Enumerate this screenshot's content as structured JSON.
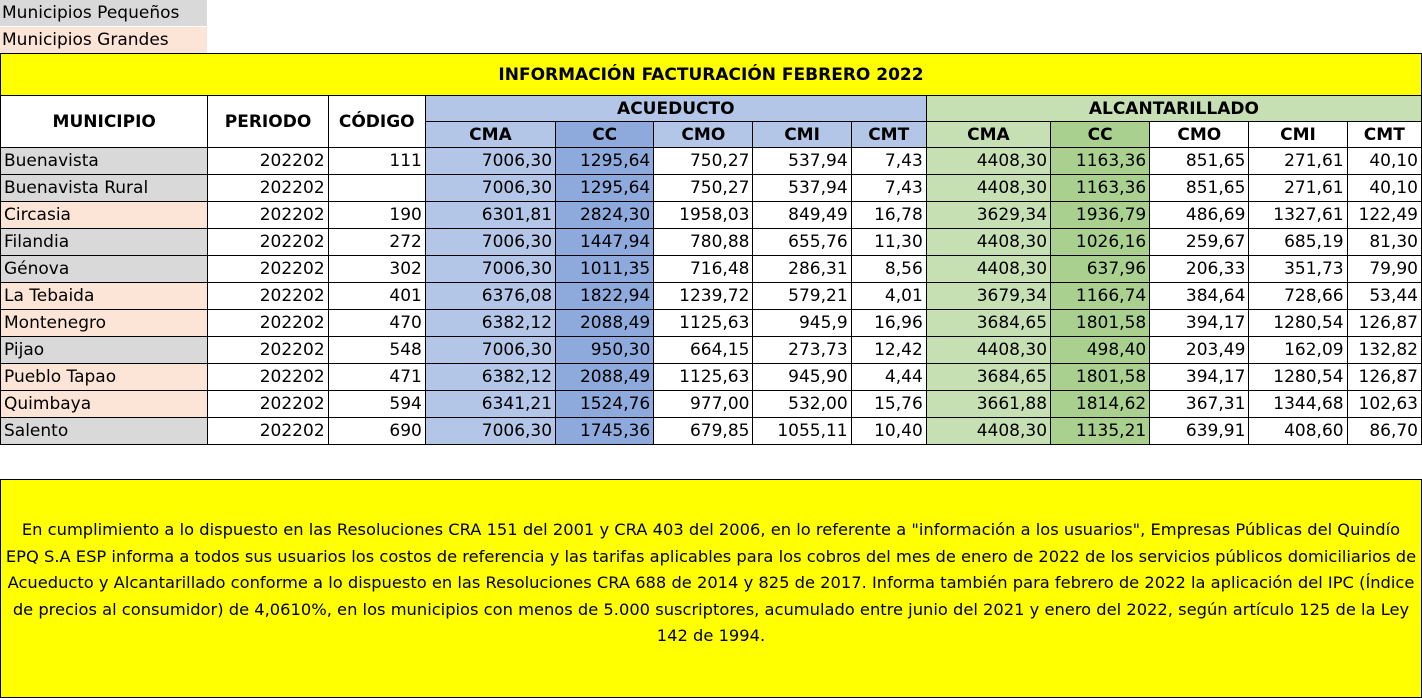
{
  "legend": {
    "small": "Municipios Pequeños",
    "large": "Municipios Grandes"
  },
  "colors": {
    "small": "#d9d9d9",
    "large": "#fce4d6",
    "title_bg": "#ffff00",
    "acueducto": "#b4c6e7",
    "acueducto_cc": "#8ea9db",
    "alcantarillado": "#c6e0b4",
    "alcantarillado_cc": "#a9d08e"
  },
  "table": {
    "title": "INFORMACIÓN FACTURACIÓN FEBRERO 2022",
    "headers": {
      "municipio": "MUNICIPIO",
      "periodo": "PERIODO",
      "codigo": "CÓDIGO",
      "acueducto": "ACUEDUCTO",
      "alcantarillado": "ALCANTARILLADO",
      "sub": [
        "CMA",
        "CC",
        "CMO",
        "CMI",
        "CMT"
      ]
    },
    "rows": [
      {
        "municipio": "Buenavista",
        "size": "small",
        "periodo": "202202",
        "codigo": "111",
        "acu": [
          "7006,30",
          "1295,64",
          "750,27",
          "537,94",
          "7,43"
        ],
        "alc": [
          "4408,30",
          "1163,36",
          "851,65",
          "271,61",
          "40,10"
        ]
      },
      {
        "municipio": "Buenavista Rural",
        "size": "small",
        "periodo": "202202",
        "codigo": "",
        "acu": [
          "7006,30",
          "1295,64",
          "750,27",
          "537,94",
          "7,43"
        ],
        "alc": [
          "4408,30",
          "1163,36",
          "851,65",
          "271,61",
          "40,10"
        ]
      },
      {
        "municipio": "Circasia",
        "size": "large",
        "periodo": "202202",
        "codigo": "190",
        "acu": [
          "6301,81",
          "2824,30",
          "1958,03",
          "849,49",
          "16,78"
        ],
        "alc": [
          "3629,34",
          "1936,79",
          "486,69",
          "1327,61",
          "122,49"
        ]
      },
      {
        "municipio": "Filandia",
        "size": "small",
        "periodo": "202202",
        "codigo": "272",
        "acu": [
          "7006,30",
          "1447,94",
          "780,88",
          "655,76",
          "11,30"
        ],
        "alc": [
          "4408,30",
          "1026,16",
          "259,67",
          "685,19",
          "81,30"
        ]
      },
      {
        "municipio": "Génova",
        "size": "small",
        "periodo": "202202",
        "codigo": "302",
        "acu": [
          "7006,30",
          "1011,35",
          "716,48",
          "286,31",
          "8,56"
        ],
        "alc": [
          "4408,30",
          "637,96",
          "206,33",
          "351,73",
          "79,90"
        ]
      },
      {
        "municipio": "La Tebaida",
        "size": "large",
        "periodo": "202202",
        "codigo": "401",
        "acu": [
          "6376,08",
          "1822,94",
          "1239,72",
          "579,21",
          "4,01"
        ],
        "alc": [
          "3679,34",
          "1166,74",
          "384,64",
          "728,66",
          "53,44"
        ]
      },
      {
        "municipio": "Montenegro",
        "size": "large",
        "periodo": "202202",
        "codigo": "470",
        "acu": [
          "6382,12",
          "2088,49",
          "1125,63",
          "945,9",
          "16,96"
        ],
        "alc": [
          "3684,65",
          "1801,58",
          "394,17",
          "1280,54",
          "126,87"
        ]
      },
      {
        "municipio": "Pijao",
        "size": "small",
        "periodo": "202202",
        "codigo": "548",
        "acu": [
          "7006,30",
          "950,30",
          "664,15",
          "273,73",
          "12,42"
        ],
        "alc": [
          "4408,30",
          "498,40",
          "203,49",
          "162,09",
          "132,82"
        ]
      },
      {
        "municipio": "Pueblo Tapao",
        "size": "large",
        "periodo": "202202",
        "codigo": "471",
        "acu": [
          "6382,12",
          "2088,49",
          "1125,63",
          "945,90",
          "4,44"
        ],
        "alc": [
          "3684,65",
          "1801,58",
          "394,17",
          "1280,54",
          "126,87"
        ]
      },
      {
        "municipio": "Quimbaya",
        "size": "large",
        "periodo": "202202",
        "codigo": "594",
        "acu": [
          "6341,21",
          "1524,76",
          "977,00",
          "532,00",
          "15,76"
        ],
        "alc": [
          "3661,88",
          "1814,62",
          "367,31",
          "1344,68",
          "102,63"
        ]
      },
      {
        "municipio": "Salento",
        "size": "small",
        "periodo": "202202",
        "codigo": "690",
        "acu": [
          "7006,30",
          "1745,36",
          "679,85",
          "1055,11",
          "10,40"
        ],
        "alc": [
          "4408,30",
          "1135,21",
          "639,91",
          "408,60",
          "86,70"
        ]
      }
    ]
  },
  "note": "En cumplimiento a lo dispuesto en las Resoluciones CRA 151 del 2001 y CRA 403 del 2006, en lo referente a \"información a los usuarios\", Empresas Públicas del Quindío EPQ S.A ESP informa a todos sus usuarios los costos de referencia y las tarifas aplicables para los cobros del mes de enero de 2022 de los servicios públicos domiciliarios de Acueducto y Alcantarillado conforme a lo dispuesto en las Resoluciones CRA 688 de 2014 y 825 de 2017. Informa también para febrero de 2022  la aplicación del IPC (Índice de precios al consumidor) de 4,0610%, en los municipios con menos de 5.000 suscriptores, acumulado entre junio del 2021 y enero del 2022, según artículo 125 de la Ley 142 de 1994."
}
